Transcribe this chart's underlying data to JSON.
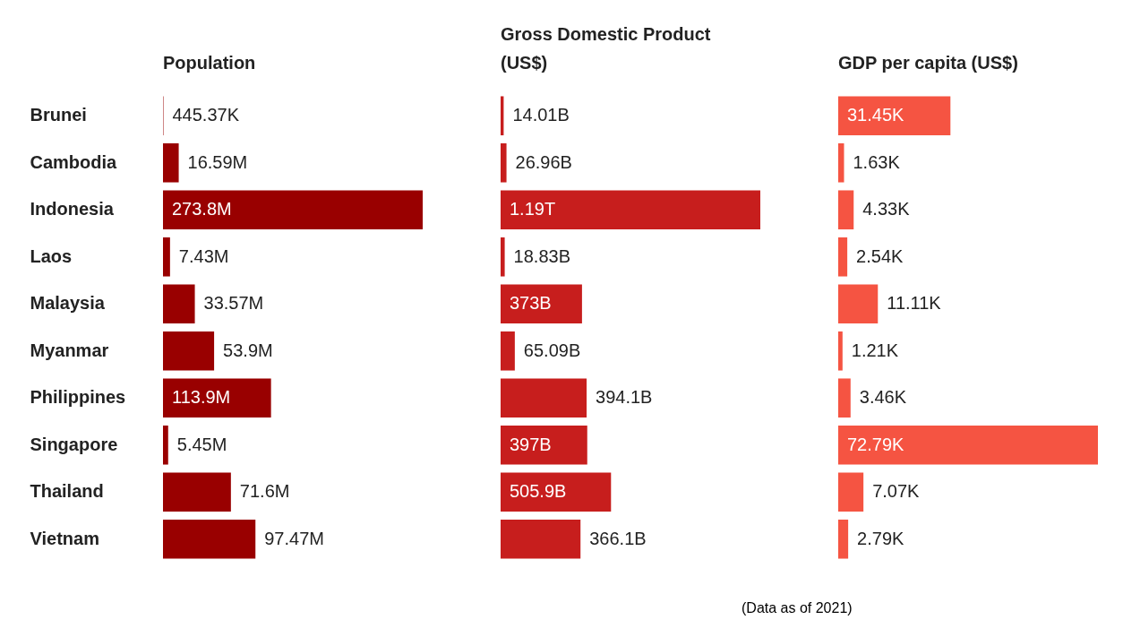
{
  "chart_data": [
    {
      "type": "bar",
      "orientation": "horizontal",
      "title": "Population",
      "tick_labels": "y",
      "color": "#990000",
      "categories": [
        "Brunei",
        "Cambodia",
        "Indonesia",
        "Laos",
        "Malaysia",
        "Myanmar",
        "Philippines",
        "Singapore",
        "Thailand",
        "Vietnam"
      ],
      "values": [
        445370,
        16590000,
        273800000,
        7430000,
        33570000,
        53900000,
        113900000,
        5450000,
        71600000,
        97470000
      ],
      "value_labels": [
        "445.37K",
        "16.59M",
        "273.8M",
        "7.43M",
        "33.57M",
        "53.9M",
        "113.9M",
        "5.45M",
        "71.6M",
        "97.47M"
      ]
    },
    {
      "type": "bar",
      "orientation": "horizontal",
      "title": "Gross Domestic Product (US$)",
      "tick_labels": false,
      "color": "#c71e1d",
      "categories": [
        null,
        null,
        null,
        null,
        null,
        null,
        null,
        null,
        null,
        null
      ],
      "values": [
        14010000000,
        26960000000,
        1190000000000,
        18830000000,
        373000000000,
        65090000000,
        394100000000,
        397000000000,
        505900000000,
        366100000000
      ],
      "value_labels": [
        "14.01B",
        "26.96B",
        "1.19T",
        "18.83B",
        "373B",
        "65.09B",
        "394.1B",
        "397B",
        "505.9B",
        "366.1B"
      ]
    },
    {
      "type": "bar",
      "orientation": "horizontal",
      "title": "GDP per capita (US$)",
      "tick_labels": false,
      "color": "#f55442",
      "categories": [
        null,
        null,
        null,
        null,
        null,
        null,
        null,
        null,
        null,
        null
      ],
      "values": [
        31450,
        1630,
        4330,
        2540,
        11110,
        1210,
        3460,
        72790,
        7070,
        2790
      ],
      "value_labels": [
        "31.45K",
        "1.63K",
        "4.33K",
        "2.54K",
        "11.11K",
        "1.21K",
        "3.46K",
        "72.79K",
        "7.07K",
        "2.79K"
      ],
      "annotations": [
        "(Data as of 2021)"
      ]
    }
  ]
}
